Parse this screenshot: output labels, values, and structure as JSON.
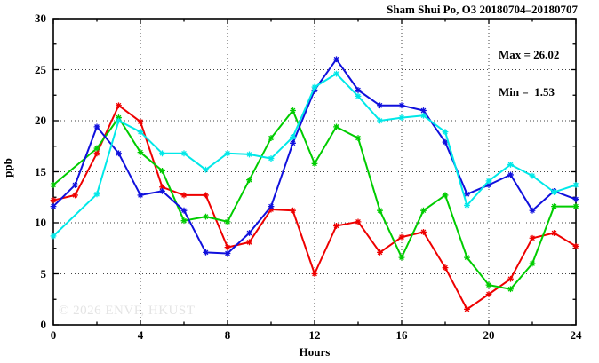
{
  "chart_data": {
    "type": "line",
    "title": "Sham Shui Po, O3 20180704–20180707",
    "annotations": [
      "Max = 26.02",
      "Min =  1.53"
    ],
    "max_value": 26.02,
    "min_value": 1.53,
    "xlabel": "Hours",
    "ylabel": "ppb",
    "xlim": [
      0,
      24
    ],
    "ylim": [
      0,
      30
    ],
    "x_major_ticks": [
      0,
      4,
      8,
      12,
      16,
      20,
      24
    ],
    "x_minor_ticks": [
      2,
      6,
      10,
      14,
      18,
      22
    ],
    "y_major_ticks": [
      0,
      5,
      10,
      15,
      20,
      25,
      30
    ],
    "y_minor_ticks": [
      2.5,
      7.5,
      12.5,
      17.5,
      22.5,
      27.5
    ],
    "grid": "dotted-at-major-ticks",
    "legend": "none",
    "x": [
      0,
      1,
      2,
      3,
      4,
      5,
      6,
      7,
      8,
      9,
      10,
      11,
      12,
      13,
      14,
      15,
      16,
      17,
      18,
      19,
      20,
      21,
      22,
      23,
      24
    ],
    "series": [
      {
        "name": "red-line",
        "color": "#ee0000",
        "values": [
          12.2,
          12.7,
          16.8,
          21.5,
          19.9,
          13.5,
          12.7,
          12.7,
          7.6,
          8.1,
          11.3,
          11.2,
          5.0,
          9.7,
          10.1,
          7.1,
          8.6,
          9.1,
          5.6,
          1.53,
          3.0,
          4.5,
          8.5,
          9.0,
          7.7
        ]
      },
      {
        "name": "green-line",
        "color": "#00cc00",
        "values": [
          13.7,
          null,
          17.3,
          20.3,
          16.9,
          15.1,
          10.2,
          10.6,
          10.1,
          14.2,
          18.3,
          21.0,
          15.8,
          19.4,
          18.3,
          11.2,
          6.6,
          11.2,
          12.7,
          6.6,
          3.9,
          3.5,
          6.0,
          11.6,
          11.6
        ]
      },
      {
        "name": "blue-line",
        "color": "#1010dd",
        "values": [
          11.6,
          13.7,
          19.4,
          16.8,
          12.7,
          13.1,
          11.2,
          7.1,
          7.0,
          9.0,
          11.6,
          17.8,
          23.0,
          26.02,
          23.0,
          21.5,
          21.5,
          21.0,
          17.9,
          12.8,
          13.7,
          14.7,
          11.2,
          13.1,
          12.3
        ]
      },
      {
        "name": "cyan-line",
        "color": "#00e8e8",
        "values": [
          8.7,
          null,
          12.8,
          20.0,
          18.9,
          16.8,
          16.8,
          15.2,
          16.8,
          16.7,
          16.3,
          18.4,
          23.3,
          24.6,
          22.4,
          20.0,
          20.3,
          20.5,
          18.9,
          11.7,
          14.1,
          15.7,
          14.6,
          13.0,
          13.7
        ]
      }
    ],
    "watermark": "© 2026 ENVF, HKUST"
  }
}
